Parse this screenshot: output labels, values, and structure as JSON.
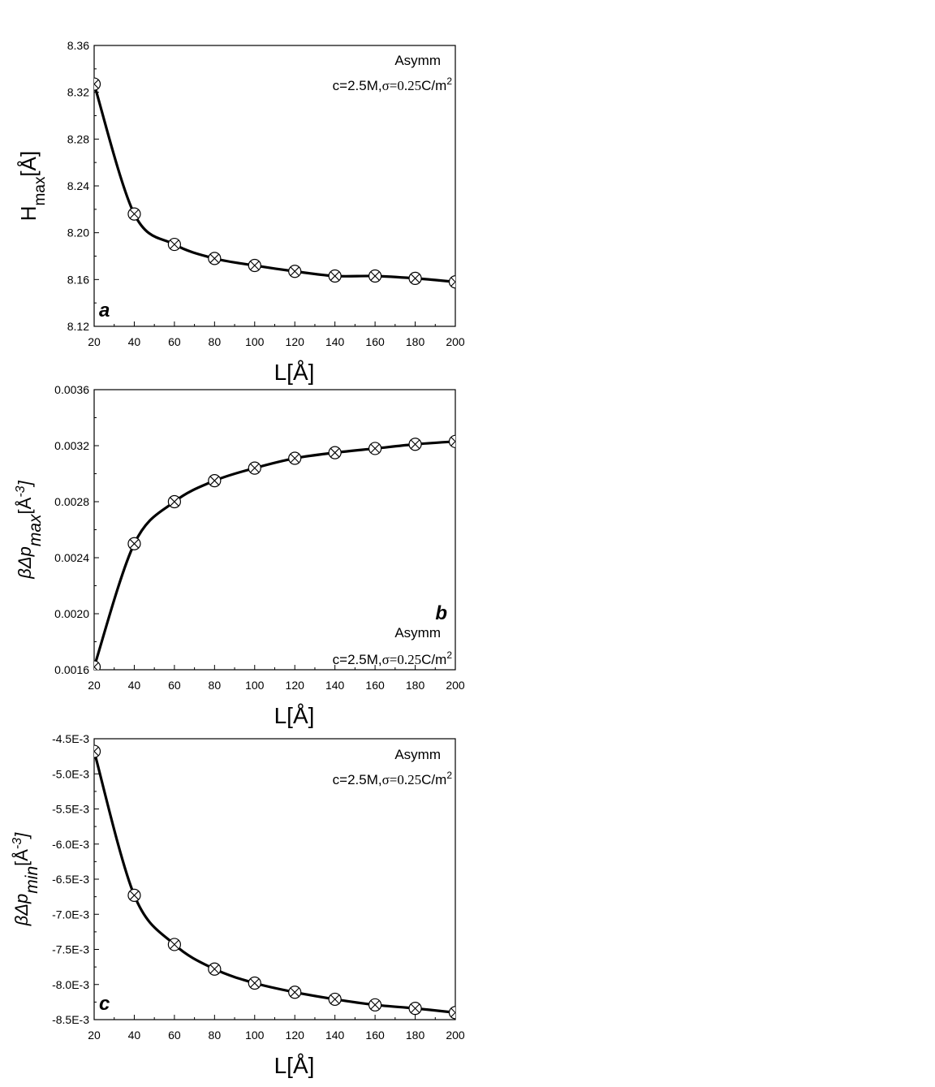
{
  "chart_data": [
    {
      "type": "line",
      "panel_label": "a",
      "x": [
        20,
        40,
        60,
        80,
        100,
        120,
        140,
        160,
        180,
        200
      ],
      "series": [
        {
          "values": [
            8.327,
            8.216,
            8.19,
            8.178,
            8.172,
            8.167,
            8.163,
            8.163,
            8.161,
            8.158
          ]
        }
      ],
      "xlim": [
        20,
        200
      ],
      "ylim": [
        8.12,
        8.36
      ],
      "xticks": [
        "20",
        "40",
        "60",
        "80",
        "100",
        "120",
        "140",
        "160",
        "180",
        "200"
      ],
      "yticks": [
        "8.12",
        "8.16",
        "8.20",
        "8.24",
        "8.28",
        "8.32",
        "8.36"
      ],
      "xlabel": "L[Å]",
      "ylabel": {
        "main": "H",
        "sub": "max",
        "rest": "[Å]"
      },
      "legend": {
        "title": "Asymm",
        "cond_prefix": "c=2.5M,",
        "sigma": "σ=0.25",
        "unit": "C/m",
        "exp": "2"
      }
    },
    {
      "type": "line",
      "panel_label": "b",
      "x": [
        20,
        40,
        60,
        80,
        100,
        120,
        140,
        160,
        180,
        200
      ],
      "series": [
        {
          "values": [
            0.00162,
            0.0025,
            0.0028,
            0.00295,
            0.00304,
            0.00311,
            0.00315,
            0.00318,
            0.00321,
            0.00323
          ]
        }
      ],
      "xlim": [
        20,
        200
      ],
      "ylim": [
        0.0016,
        0.0036
      ],
      "xticks": [
        "20",
        "40",
        "60",
        "80",
        "100",
        "120",
        "140",
        "160",
        "180",
        "200"
      ],
      "yticks": [
        "0.0016",
        "0.0020",
        "0.0024",
        "0.0028",
        "0.0032",
        "0.0036"
      ],
      "xlabel": "L[Å]",
      "ylabel": {
        "main": "βΔp",
        "sub": "max",
        "rest": "[Å",
        "exp": "-3",
        "close": "]"
      },
      "legend": {
        "title": "Asymm",
        "cond_prefix": "c=2.5M,",
        "sigma": "σ=0.25",
        "unit": "C/m",
        "exp": "2"
      }
    },
    {
      "type": "line",
      "panel_label": "c",
      "x": [
        20,
        40,
        60,
        80,
        100,
        120,
        140,
        160,
        180,
        200
      ],
      "series": [
        {
          "values": [
            -0.00468,
            -0.00673,
            -0.00743,
            -0.00778,
            -0.00798,
            -0.00811,
            -0.00821,
            -0.00829,
            -0.00834,
            -0.0084
          ]
        }
      ],
      "xlim": [
        20,
        200
      ],
      "ylim": [
        -0.0085,
        -0.0045
      ],
      "xticks": [
        "20",
        "40",
        "60",
        "80",
        "100",
        "120",
        "140",
        "160",
        "180",
        "200"
      ],
      "yticks": [
        "-8.5E-3",
        "-8.0E-3",
        "-7.5E-3",
        "-7.0E-3",
        "-6.5E-3",
        "-6.0E-3",
        "-5.5E-3",
        "-5.0E-3",
        "-4.5E-3"
      ],
      "xlabel": "L[Å]",
      "ylabel": {
        "main": "βΔp",
        "sub": "min",
        "rest": "[Å",
        "exp": "-3",
        "close": "]"
      },
      "legend": {
        "title": "Asymm",
        "cond_prefix": "c=2.5M,",
        "sigma": "σ=0.25",
        "unit": "C/m",
        "exp": "2"
      }
    }
  ]
}
